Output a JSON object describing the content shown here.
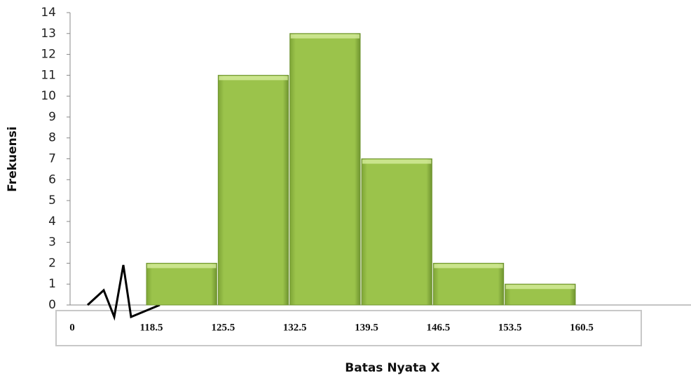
{
  "chart_data": {
    "type": "histogram",
    "x_label": "Batas Nyata X",
    "y_label": "Frekuensi",
    "x_start": 0,
    "bins": [
      118.5,
      125.5,
      132.5,
      139.5,
      146.5,
      153.5,
      160.5
    ],
    "values": [
      2,
      11,
      13,
      7,
      2,
      1
    ],
    "color": "#9bc34b",
    "ylim": [
      0,
      14
    ],
    "yticks": [
      0,
      1,
      2,
      3,
      4,
      5,
      6,
      7,
      8,
      9,
      10,
      11,
      12,
      13,
      14
    ]
  }
}
